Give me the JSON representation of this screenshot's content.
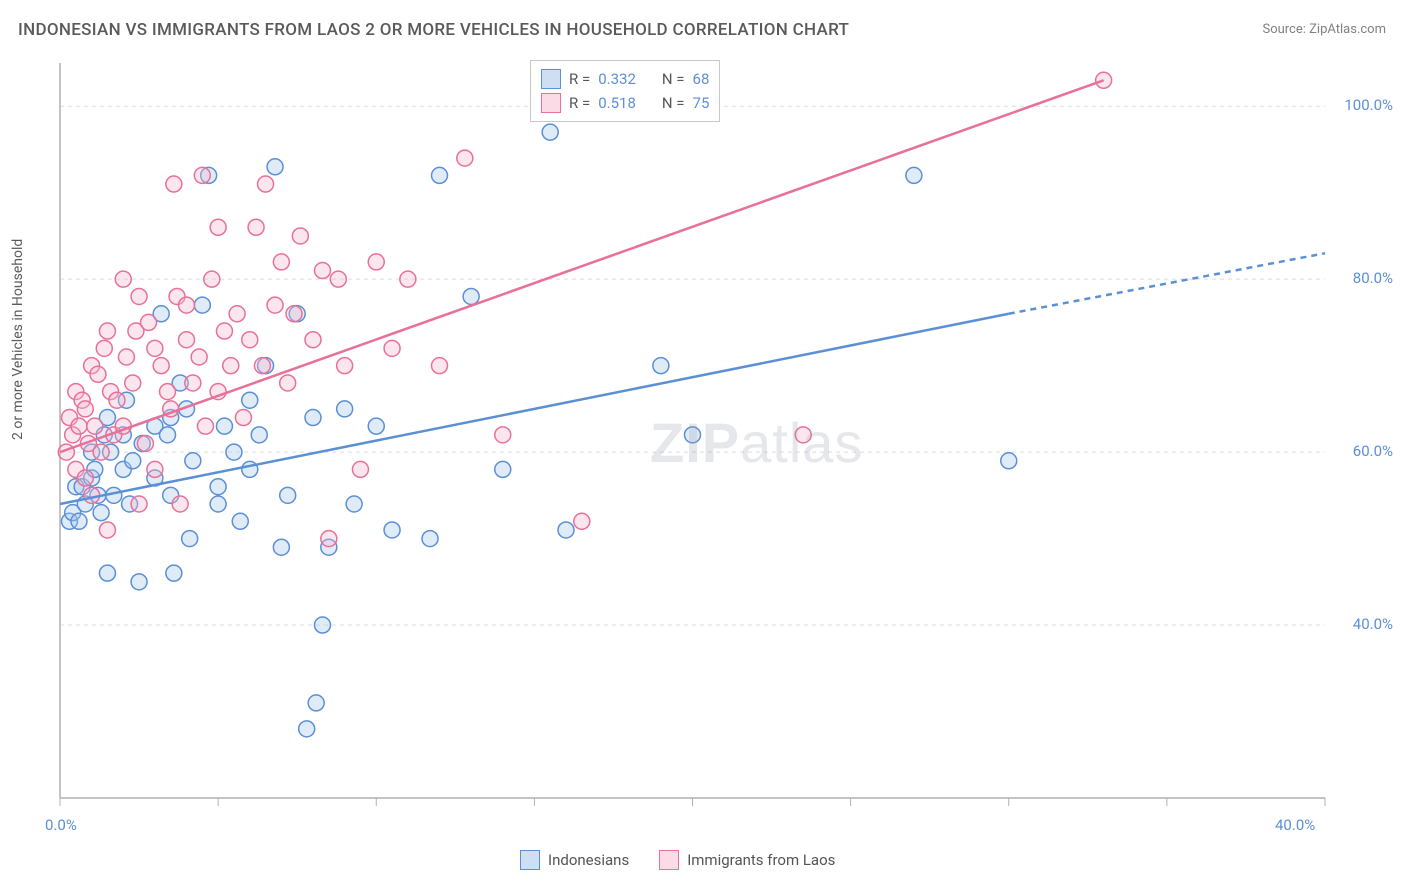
{
  "title": "INDONESIAN VS IMMIGRANTS FROM LAOS 2 OR MORE VEHICLES IN HOUSEHOLD CORRELATION CHART",
  "source": "Source: ZipAtlas.com",
  "watermark": "ZIPatlas",
  "y_axis_label": "2 or more Vehicles in Household",
  "chart": {
    "type": "scatter",
    "background_color": "#ffffff",
    "grid_color": "#dcdcdc",
    "grid_dash": "4,4",
    "axis_line_color": "#b0b0b0",
    "tick_label_color": "#5b8fd6",
    "tick_label_fontsize": 15,
    "xlim": [
      0,
      40
    ],
    "ylim": [
      20,
      105
    ],
    "x_ticks": [
      0,
      5,
      10,
      15,
      20,
      25,
      30,
      35,
      40
    ],
    "x_tick_labels": {
      "0": "0.0%",
      "40": "40.0%"
    },
    "y_ticks": [
      40,
      60,
      80,
      100
    ],
    "y_tick_labels": {
      "40": "40.0%",
      "60": "60.0%",
      "80": "80.0%",
      "100": "100.0%"
    },
    "marker_radius": 8,
    "marker_stroke_width": 1.5,
    "marker_fill_opacity": 0.35,
    "trend_line_width": 2.5,
    "series": [
      {
        "id": "indonesians",
        "label": "Indonesians",
        "color_stroke": "#5b8fd6",
        "color_fill": "#a6c6ea",
        "R": "0.332",
        "N": "68",
        "trend": {
          "x1": 0,
          "y1": 54,
          "x2": 30,
          "y2": 76,
          "x2_dash": 40,
          "y2_dash": 83
        },
        "points": [
          [
            0.3,
            52
          ],
          [
            0.4,
            53
          ],
          [
            0.5,
            56
          ],
          [
            0.6,
            52
          ],
          [
            0.7,
            56
          ],
          [
            0.8,
            54
          ],
          [
            1.0,
            60
          ],
          [
            1.0,
            57
          ],
          [
            1.1,
            58
          ],
          [
            1.2,
            55
          ],
          [
            1.3,
            53
          ],
          [
            1.4,
            62
          ],
          [
            1.5,
            46
          ],
          [
            1.5,
            64
          ],
          [
            1.6,
            60
          ],
          [
            1.7,
            55
          ],
          [
            2.0,
            58
          ],
          [
            2.0,
            62
          ],
          [
            2.1,
            66
          ],
          [
            2.2,
            54
          ],
          [
            2.3,
            59
          ],
          [
            2.5,
            45
          ],
          [
            2.6,
            61
          ],
          [
            3.0,
            57
          ],
          [
            3.0,
            63
          ],
          [
            3.2,
            76
          ],
          [
            3.4,
            62
          ],
          [
            3.5,
            64
          ],
          [
            3.5,
            55
          ],
          [
            3.6,
            46
          ],
          [
            3.8,
            68
          ],
          [
            4.0,
            65
          ],
          [
            4.1,
            50
          ],
          [
            4.2,
            59
          ],
          [
            4.5,
            77
          ],
          [
            4.7,
            92
          ],
          [
            5.0,
            56
          ],
          [
            5.0,
            54
          ],
          [
            5.2,
            63
          ],
          [
            5.5,
            60
          ],
          [
            5.7,
            52
          ],
          [
            6.0,
            66
          ],
          [
            6.0,
            58
          ],
          [
            6.3,
            62
          ],
          [
            6.5,
            70
          ],
          [
            6.8,
            93
          ],
          [
            7.0,
            49
          ],
          [
            7.2,
            55
          ],
          [
            7.5,
            76
          ],
          [
            7.8,
            28
          ],
          [
            8.0,
            64
          ],
          [
            8.1,
            31
          ],
          [
            8.3,
            40
          ],
          [
            8.5,
            49
          ],
          [
            9.0,
            65
          ],
          [
            9.3,
            54
          ],
          [
            10.0,
            63
          ],
          [
            10.5,
            51
          ],
          [
            11.7,
            50
          ],
          [
            12.0,
            92
          ],
          [
            13.0,
            78
          ],
          [
            14.0,
            58
          ],
          [
            15.5,
            97
          ],
          [
            16.0,
            51
          ],
          [
            19.0,
            70
          ],
          [
            20.0,
            62
          ],
          [
            27.0,
            92
          ],
          [
            30.0,
            59
          ]
        ]
      },
      {
        "id": "laos",
        "label": "Immigrants from Laos",
        "color_stroke": "#e87099",
        "color_fill": "#f5b6cd",
        "R": "0.518",
        "N": "75",
        "trend": {
          "x1": 0,
          "y1": 60,
          "x2": 33,
          "y2": 103,
          "x2_dash": 33,
          "y2_dash": 103
        },
        "points": [
          [
            0.2,
            60
          ],
          [
            0.3,
            64
          ],
          [
            0.4,
            62
          ],
          [
            0.5,
            58
          ],
          [
            0.5,
            67
          ],
          [
            0.6,
            63
          ],
          [
            0.7,
            66
          ],
          [
            0.8,
            57
          ],
          [
            0.8,
            65
          ],
          [
            0.9,
            61
          ],
          [
            1.0,
            70
          ],
          [
            1.0,
            55
          ],
          [
            1.1,
            63
          ],
          [
            1.2,
            69
          ],
          [
            1.3,
            60
          ],
          [
            1.4,
            72
          ],
          [
            1.5,
            51
          ],
          [
            1.5,
            74
          ],
          [
            1.6,
            67
          ],
          [
            1.7,
            62
          ],
          [
            1.8,
            66
          ],
          [
            2.0,
            80
          ],
          [
            2.0,
            63
          ],
          [
            2.1,
            71
          ],
          [
            2.3,
            68
          ],
          [
            2.4,
            74
          ],
          [
            2.5,
            54
          ],
          [
            2.5,
            78
          ],
          [
            2.7,
            61
          ],
          [
            2.8,
            75
          ],
          [
            3.0,
            72
          ],
          [
            3.0,
            58
          ],
          [
            3.2,
            70
          ],
          [
            3.4,
            67
          ],
          [
            3.5,
            65
          ],
          [
            3.6,
            91
          ],
          [
            3.7,
            78
          ],
          [
            3.8,
            54
          ],
          [
            4.0,
            77
          ],
          [
            4.0,
            73
          ],
          [
            4.2,
            68
          ],
          [
            4.4,
            71
          ],
          [
            4.5,
            92
          ],
          [
            4.6,
            63
          ],
          [
            4.8,
            80
          ],
          [
            5.0,
            86
          ],
          [
            5.0,
            67
          ],
          [
            5.2,
            74
          ],
          [
            5.4,
            70
          ],
          [
            5.6,
            76
          ],
          [
            5.8,
            64
          ],
          [
            6.0,
            73
          ],
          [
            6.2,
            86
          ],
          [
            6.4,
            70
          ],
          [
            6.5,
            91
          ],
          [
            6.8,
            77
          ],
          [
            7.0,
            82
          ],
          [
            7.2,
            68
          ],
          [
            7.4,
            76
          ],
          [
            7.6,
            85
          ],
          [
            8.0,
            73
          ],
          [
            8.3,
            81
          ],
          [
            8.5,
            50
          ],
          [
            8.8,
            80
          ],
          [
            9.0,
            70
          ],
          [
            9.5,
            58
          ],
          [
            10.0,
            82
          ],
          [
            10.5,
            72
          ],
          [
            11.0,
            80
          ],
          [
            12.0,
            70
          ],
          [
            12.8,
            94
          ],
          [
            14.0,
            62
          ],
          [
            16.5,
            52
          ],
          [
            23.5,
            62
          ],
          [
            33.0,
            103
          ]
        ]
      }
    ]
  },
  "legend_top": {
    "rows": [
      {
        "swatch_fill": "#cfdff3",
        "swatch_stroke": "#5b8fd6",
        "r_label": "R =",
        "r_value": "0.332",
        "n_label": "N =",
        "n_value": "68"
      },
      {
        "swatch_fill": "#fadbe6",
        "swatch_stroke": "#e87099",
        "r_label": "R =",
        "r_value": "0.518",
        "n_label": "N =",
        "n_value": "75"
      }
    ]
  },
  "legend_bottom": {
    "items": [
      {
        "swatch_fill": "#cfdff3",
        "swatch_stroke": "#5b8fd6",
        "label": "Indonesians"
      },
      {
        "swatch_fill": "#fadbe6",
        "swatch_stroke": "#e87099",
        "label": "Immigrants from Laos"
      }
    ]
  }
}
